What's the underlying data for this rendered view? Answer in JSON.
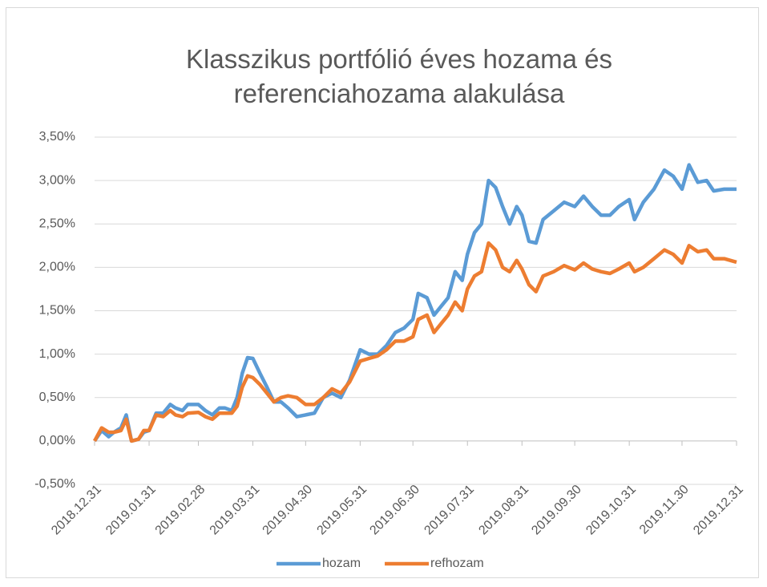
{
  "chart_data": {
    "type": "line",
    "title": "Klasszikus portfólió éves hozama és referenciahozama alakulása",
    "x": [
      "2018.12.31",
      "2019.01.04",
      "2019.01.08",
      "2019.01.11",
      "2019.01.15",
      "2019.01.18",
      "2019.01.21",
      "2019.01.25",
      "2019.01.28",
      "2019.01.31",
      "2019.02.04",
      "2019.02.08",
      "2019.02.12",
      "2019.02.15",
      "2019.02.19",
      "2019.02.22",
      "2019.02.28",
      "2019.03.04",
      "2019.03.08",
      "2019.03.12",
      "2019.03.15",
      "2019.03.19",
      "2019.03.22",
      "2019.03.25",
      "2019.03.28",
      "2019.03.31",
      "2019.04.04",
      "2019.04.08",
      "2019.04.12",
      "2019.04.16",
      "2019.04.20",
      "2019.04.25",
      "2019.04.30",
      "2019.05.05",
      "2019.05.10",
      "2019.05.15",
      "2019.05.20",
      "2019.05.25",
      "2019.05.31",
      "2019.06.05",
      "2019.06.10",
      "2019.06.15",
      "2019.06.20",
      "2019.06.25",
      "2019.06.30",
      "2019.07.03",
      "2019.07.08",
      "2019.07.12",
      "2019.07.16",
      "2019.07.20",
      "2019.07.24",
      "2019.07.28",
      "2019.07.31",
      "2019.08.04",
      "2019.08.08",
      "2019.08.12",
      "2019.08.16",
      "2019.08.20",
      "2019.08.24",
      "2019.08.28",
      "2019.08.31",
      "2019.09.04",
      "2019.09.08",
      "2019.09.12",
      "2019.09.18",
      "2019.09.24",
      "2019.09.30",
      "2019.10.05",
      "2019.10.10",
      "2019.10.15",
      "2019.10.20",
      "2019.10.25",
      "2019.10.31",
      "2019.11.03",
      "2019.11.08",
      "2019.11.14",
      "2019.11.20",
      "2019.11.25",
      "2019.11.30",
      "2019.12.04",
      "2019.12.09",
      "2019.12.14",
      "2019.12.18",
      "2019.12.24",
      "2019.12.31"
    ],
    "series": [
      {
        "name": "hozam",
        "color": "#5b9bd5",
        "values": [
          0,
          0.12,
          0.05,
          0.1,
          0.15,
          0.3,
          0,
          0.02,
          0.1,
          0.12,
          0.32,
          0.32,
          0.42,
          0.38,
          0.35,
          0.42,
          0.42,
          0.35,
          0.3,
          0.38,
          0.38,
          0.35,
          0.5,
          0.78,
          0.96,
          0.95,
          0.78,
          0.62,
          0.45,
          0.45,
          0.38,
          0.28,
          0.3,
          0.32,
          0.5,
          0.55,
          0.5,
          0.7,
          1.05,
          1.0,
          1.0,
          1.1,
          1.25,
          1.3,
          1.4,
          1.7,
          1.65,
          1.45,
          1.55,
          1.65,
          1.95,
          1.85,
          2.15,
          2.4,
          2.5,
          3.0,
          2.92,
          2.7,
          2.5,
          2.7,
          2.6,
          2.3,
          2.28,
          2.55,
          2.65,
          2.75,
          2.7,
          2.82,
          2.7,
          2.6,
          2.6,
          2.7,
          2.78,
          2.55,
          2.75,
          2.9,
          3.12,
          3.05,
          2.9,
          3.18,
          2.98,
          3.0,
          2.88,
          2.9,
          2.9
        ]
      },
      {
        "name": "refhozam",
        "color": "#ed7d31",
        "values": [
          0,
          0.15,
          0.1,
          0.1,
          0.12,
          0.25,
          0,
          0.02,
          0.12,
          0.12,
          0.3,
          0.28,
          0.35,
          0.3,
          0.28,
          0.32,
          0.33,
          0.28,
          0.25,
          0.32,
          0.32,
          0.32,
          0.4,
          0.62,
          0.75,
          0.73,
          0.65,
          0.55,
          0.45,
          0.5,
          0.52,
          0.5,
          0.42,
          0.42,
          0.5,
          0.6,
          0.55,
          0.68,
          0.92,
          0.95,
          0.98,
          1.05,
          1.15,
          1.15,
          1.2,
          1.4,
          1.45,
          1.25,
          1.35,
          1.45,
          1.6,
          1.5,
          1.75,
          1.9,
          1.95,
          2.28,
          2.2,
          2.0,
          1.95,
          2.08,
          1.98,
          1.8,
          1.72,
          1.9,
          1.95,
          2.02,
          1.97,
          2.05,
          1.98,
          1.95,
          1.93,
          1.98,
          2.05,
          1.95,
          2.0,
          2.1,
          2.2,
          2.15,
          2.05,
          2.25,
          2.18,
          2.2,
          2.1,
          2.1,
          2.06
        ]
      }
    ],
    "ylim": [
      -0.5,
      3.5
    ],
    "yticks": [
      {
        "value": -0.5,
        "label": "-0,50%"
      },
      {
        "value": 0,
        "label": "0,00%"
      },
      {
        "value": 0.5,
        "label": "0,50%"
      },
      {
        "value": 1,
        "label": "1,00%"
      },
      {
        "value": 1.5,
        "label": "1,50%"
      },
      {
        "value": 2,
        "label": "2,00%"
      },
      {
        "value": 2.5,
        "label": "2,50%"
      },
      {
        "value": 3,
        "label": "3,00%"
      },
      {
        "value": 3.5,
        "label": "3,50%"
      }
    ],
    "xlim": [
      "2018.12.31",
      "2019.12.31"
    ],
    "xticks": [
      "2018.12.31",
      "2019.01.31",
      "2019.02.28",
      "2019.03.31",
      "2019.04.30",
      "2019.05.31",
      "2019.06.30",
      "2019.07.31",
      "2019.08.31",
      "2019.09.30",
      "2019.10.31",
      "2019.11.30",
      "2019.12.31"
    ],
    "grid": true,
    "legend": "bottom"
  }
}
